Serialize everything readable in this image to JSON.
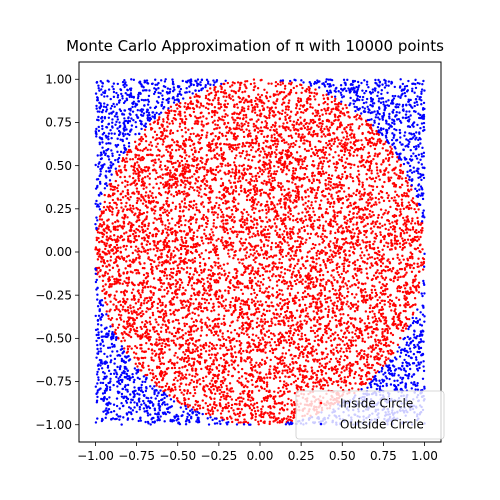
{
  "chart_data": {
    "type": "scatter",
    "title": "Monte Carlo Approximation of π with 10000 points",
    "n_points": 10000,
    "xlabel": "",
    "ylabel": "",
    "xlim": [
      -1.1,
      1.1
    ],
    "ylim": [
      -1.1,
      1.1
    ],
    "aspect": "equal",
    "grid": false,
    "x_ticks": [
      -1.0,
      -0.75,
      -0.5,
      -0.25,
      0.0,
      0.25,
      0.5,
      0.75,
      1.0
    ],
    "x_tick_labels": [
      "−1.00",
      "−0.75",
      "−0.50",
      "−0.25",
      "0.00",
      "0.25",
      "0.50",
      "0.75",
      "1.00"
    ],
    "y_ticks": [
      -1.0,
      -0.75,
      -0.5,
      -0.25,
      0.0,
      0.25,
      0.5,
      0.75,
      1.0
    ],
    "y_tick_labels": [
      "−1.00",
      "−0.75",
      "−0.50",
      "−0.25",
      "0.00",
      "0.25",
      "0.50",
      "0.75",
      "1.00"
    ],
    "legend_position": "lower-right",
    "series": [
      {
        "name": "Inside Circle",
        "color": "#ff0000",
        "region": "x^2 + y^2 <= 1"
      },
      {
        "name": "Outside Circle",
        "color": "#0000ff",
        "region": "x^2 + y^2 > 1"
      }
    ],
    "sampling": {
      "distribution": "uniform",
      "x_range": [
        -1,
        1
      ],
      "y_range": [
        -1,
        1
      ]
    }
  }
}
